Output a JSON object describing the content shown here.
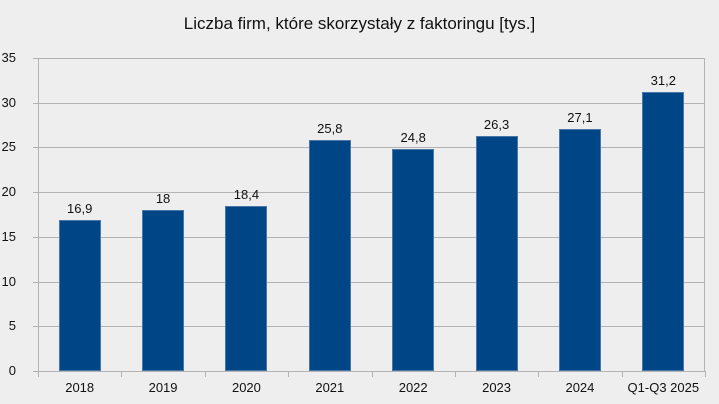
{
  "chart_data": {
    "type": "bar",
    "title": "Liczba firm, które skorzystały z faktoringu [tys.]",
    "xlabel": "",
    "ylabel": "",
    "categories": [
      "2018",
      "2019",
      "2020",
      "2021",
      "2022",
      "2023",
      "2024",
      "Q1-Q3 2025"
    ],
    "values": [
      16.9,
      18,
      18.4,
      25.8,
      24.8,
      26.3,
      27.1,
      31.2
    ],
    "value_labels": [
      "16,9",
      "18",
      "18,4",
      "25,8",
      "24,8",
      "26,3",
      "27,1",
      "31,2"
    ],
    "ylim": [
      0,
      35
    ],
    "yticks": [
      "0",
      "5",
      "10",
      "15",
      "20",
      "25",
      "30",
      "35"
    ],
    "grid": true,
    "legend": "none",
    "bar_color": "#004586"
  }
}
